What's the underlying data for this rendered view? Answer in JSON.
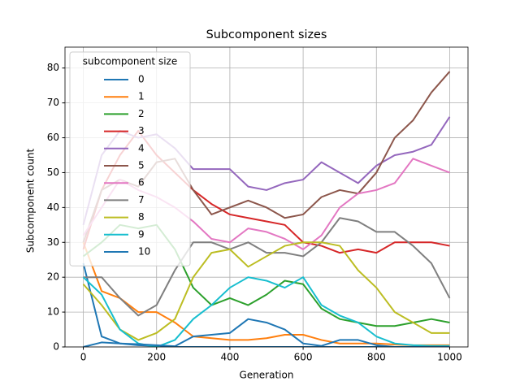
{
  "chart_data": {
    "type": "line",
    "title": "Subcomponent sizes",
    "x_label": "Generation",
    "y_label": "Subcomponent count",
    "legend_title": "subcomponent size",
    "legend_loc": "upper left",
    "grid": true,
    "x": [
      0,
      50,
      100,
      150,
      200,
      250,
      300,
      350,
      400,
      450,
      500,
      550,
      600,
      650,
      700,
      750,
      800,
      850,
      900,
      950,
      1000
    ],
    "xlim": [
      -50,
      1050
    ],
    "xticks": [
      0,
      200,
      400,
      600,
      800,
      1000
    ],
    "ylim": [
      0,
      86
    ],
    "yticks": [
      0,
      10,
      20,
      30,
      40,
      50,
      60,
      70,
      80
    ],
    "series": [
      {
        "name": "0",
        "color": "#1f77b4",
        "values": [
          24,
          3,
          1,
          0.5,
          0.3,
          0,
          0,
          0,
          0,
          0,
          0,
          0,
          0,
          0,
          0,
          0,
          0,
          0,
          0,
          0,
          0
        ]
      },
      {
        "name": "1",
        "color": "#ff7f0e",
        "values": [
          30,
          16,
          14,
          10,
          10,
          7,
          3,
          2.5,
          2,
          2,
          2.5,
          3.5,
          3.5,
          2,
          1,
          1,
          1,
          0.7,
          0.5,
          0.5,
          0.5
        ]
      },
      {
        "name": "2",
        "color": "#2ca02c",
        "values": [
          26,
          30,
          35,
          34,
          35,
          28,
          17,
          12,
          14,
          12,
          15,
          19,
          18,
          11,
          8,
          7,
          6,
          6,
          7,
          8,
          7
        ]
      },
      {
        "name": "3",
        "color": "#d62728",
        "values": [
          28,
          45,
          55,
          62,
          55,
          50,
          45,
          41,
          38,
          37,
          36,
          35,
          30,
          29,
          27,
          28,
          27,
          30,
          30,
          30,
          29
        ]
      },
      {
        "name": "4",
        "color": "#9467bd",
        "values": [
          35,
          55,
          62,
          60,
          61,
          57,
          51,
          51,
          51,
          46,
          45,
          47,
          48,
          53,
          50,
          47,
          52,
          55,
          56,
          58,
          66
        ]
      },
      {
        "name": "5",
        "color": "#8c564b",
        "values": [
          30,
          45,
          48,
          46,
          53,
          54,
          45,
          38,
          40,
          42,
          40,
          37,
          38,
          43,
          45,
          44,
          50,
          60,
          65,
          73,
          79
        ]
      },
      {
        "name": "6",
        "color": "#e377c2",
        "values": [
          32,
          40,
          48,
          45,
          43,
          40,
          36,
          31,
          30,
          34,
          33,
          31,
          28,
          32,
          40,
          44,
          45,
          47,
          54,
          52,
          50
        ]
      },
      {
        "name": "7",
        "color": "#7f7f7f",
        "values": [
          20,
          20,
          14,
          9,
          12,
          22,
          30,
          30,
          28,
          30,
          27,
          27,
          26,
          30,
          37,
          36,
          33,
          33,
          29,
          24,
          14
        ]
      },
      {
        "name": "8",
        "color": "#bcbd22",
        "values": [
          18,
          12,
          5,
          2,
          4,
          8,
          20,
          27,
          28,
          23,
          26,
          29,
          30,
          30,
          29,
          22,
          17,
          10,
          7,
          4,
          4
        ]
      },
      {
        "name": "9",
        "color": "#17becf",
        "values": [
          20,
          15,
          5,
          1,
          0,
          2,
          8,
          12,
          17,
          20,
          19,
          17,
          20,
          12,
          9,
          7,
          3,
          1,
          0.5,
          0.3,
          0.3
        ]
      },
      {
        "name": "10",
        "color": "#1f77b4",
        "values": [
          0,
          1.3,
          1,
          0.8,
          0.5,
          0.2,
          3,
          3.5,
          4,
          8,
          7,
          5,
          1,
          0.3,
          2,
          2,
          0.5,
          0,
          0,
          0,
          0
        ]
      }
    ]
  }
}
